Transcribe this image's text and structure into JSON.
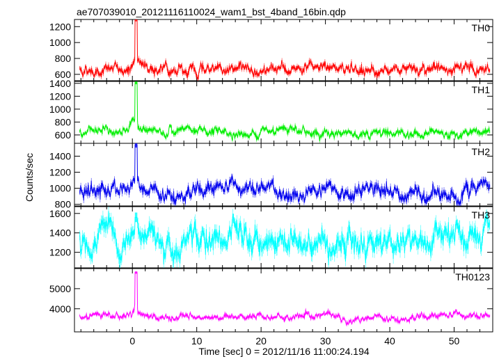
{
  "title": "ae707039010_20121116110024_wam1_bst_4band_16bin.qdp",
  "xlabel": "Time [sec] 0 = 2012/11/16 11:00:24.194",
  "ylabel": "Counts/sec",
  "chart_data": [
    {
      "type": "line",
      "name": "TH0",
      "color": "#ff0000",
      "xlim": [
        -9,
        56
      ],
      "ylim": [
        520,
        1290
      ],
      "yticks": [
        600,
        800,
        1000,
        1200
      ],
      "baseline": 660,
      "noise": 45,
      "peak_x": 0.6,
      "peak_y": 1290,
      "rise_y": 850
    },
    {
      "type": "line",
      "name": "TH1",
      "color": "#00ee00",
      "xlim": [
        -9,
        56
      ],
      "ylim": [
        470,
        1430
      ],
      "yticks": [
        600,
        800,
        1000,
        1200,
        1400
      ],
      "baseline": 640,
      "noise": 45,
      "peak_x": 0.6,
      "peak_y": 1410,
      "rise_y": 830
    },
    {
      "type": "line",
      "name": "TH2",
      "color": "#0000ee",
      "xlim": [
        -9,
        56
      ],
      "ylim": [
        780,
        1560
      ],
      "yticks": [
        800,
        1000,
        1200,
        1400
      ],
      "baseline": 960,
      "noise": 60,
      "peak_x": 0.6,
      "peak_y": 1540,
      "rise_y": 1150
    },
    {
      "type": "line",
      "name": "TH3",
      "color": "#00ffff",
      "xlim": [
        -9,
        56
      ],
      "ylim": [
        1040,
        1670
      ],
      "yticks": [
        1200,
        1400,
        1600
      ],
      "baseline": 1320,
      "noise": 90,
      "peak_x": 0.6,
      "peak_y": 1560,
      "rise_y": 1380
    },
    {
      "type": "line",
      "name": "TH0123",
      "color": "#ff00ff",
      "xlim": [
        -9,
        56
      ],
      "ylim": [
        2850,
        6000
      ],
      "yticks": [
        4000,
        5000
      ],
      "baseline": 3580,
      "noise": 110,
      "peak_x": 0.6,
      "peak_y": 5800,
      "rise_y": 4400
    }
  ],
  "xticks": [
    0,
    10,
    20,
    30,
    40,
    50
  ]
}
